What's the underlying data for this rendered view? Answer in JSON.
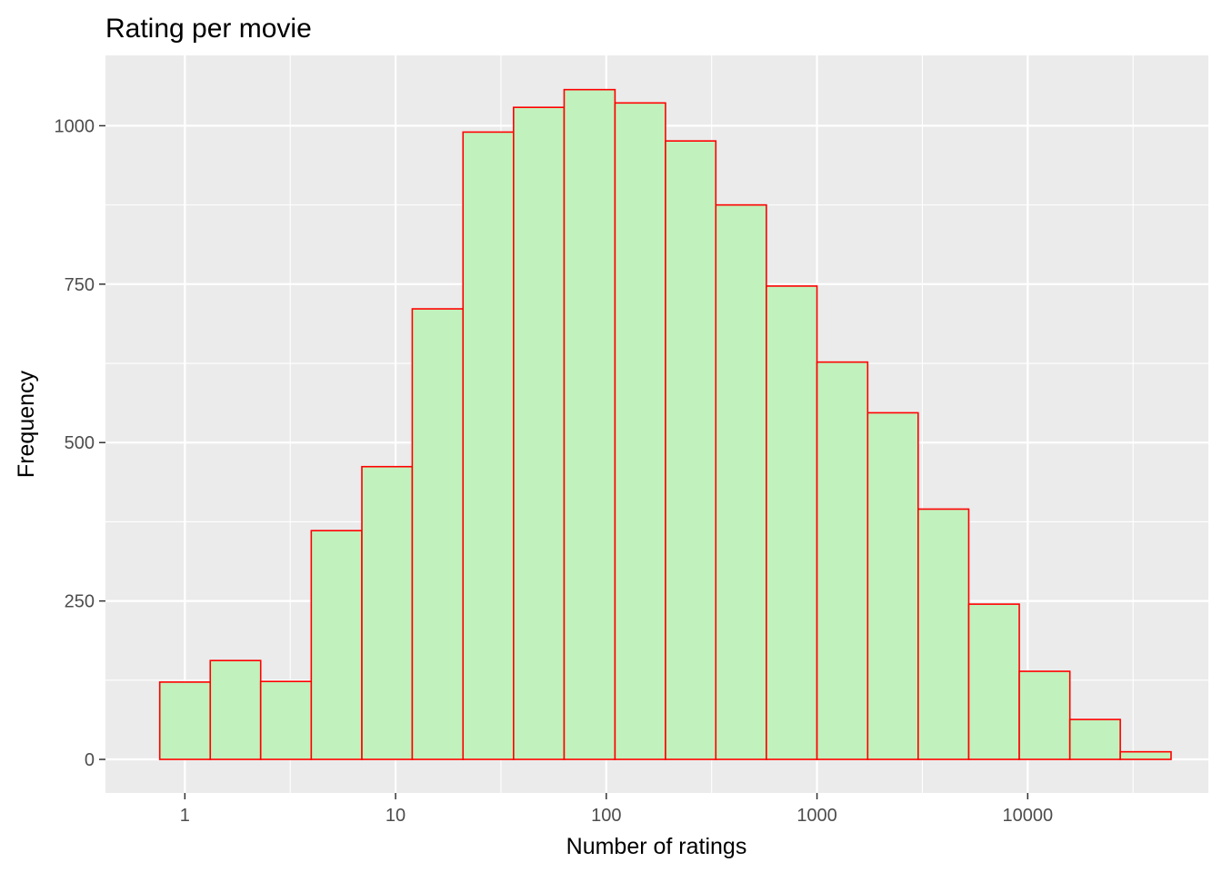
{
  "chart_data": {
    "type": "bar",
    "title": "Rating per movie",
    "xlabel": "Number of ratings",
    "ylabel": "Frequency",
    "x_scale": "log10",
    "x_ticks": [
      {
        "value": 1,
        "label": "1"
      },
      {
        "value": 10,
        "label": "10"
      },
      {
        "value": 100,
        "label": "100"
      },
      {
        "value": 1000,
        "label": "1000"
      },
      {
        "value": 10000,
        "label": "10000"
      }
    ],
    "y_ticks": [
      {
        "value": 0,
        "label": "0"
      },
      {
        "value": 250,
        "label": "250"
      },
      {
        "value": 500,
        "label": "500"
      },
      {
        "value": 750,
        "label": "750"
      },
      {
        "value": 1000,
        "label": "1000"
      }
    ],
    "xlim": [
      0.42,
      72000
    ],
    "ylim": [
      -53,
      1111
    ],
    "bins": [
      {
        "x0": 0.76,
        "x1": 1.32,
        "count": 122
      },
      {
        "x0": 1.32,
        "x1": 2.29,
        "count": 156
      },
      {
        "x0": 2.29,
        "x1": 3.98,
        "count": 123
      },
      {
        "x0": 3.98,
        "x1": 6.92,
        "count": 361
      },
      {
        "x0": 6.92,
        "x1": 12.0,
        "count": 462
      },
      {
        "x0": 12.0,
        "x1": 20.9,
        "count": 711
      },
      {
        "x0": 20.9,
        "x1": 36.3,
        "count": 990
      },
      {
        "x0": 36.3,
        "x1": 63.1,
        "count": 1029
      },
      {
        "x0": 63.1,
        "x1": 110,
        "count": 1057
      },
      {
        "x0": 110,
        "x1": 191,
        "count": 1036
      },
      {
        "x0": 191,
        "x1": 331,
        "count": 976
      },
      {
        "x0": 331,
        "x1": 575,
        "count": 875
      },
      {
        "x0": 575,
        "x1": 1000,
        "count": 747
      },
      {
        "x0": 1000,
        "x1": 1740,
        "count": 627
      },
      {
        "x0": 1740,
        "x1": 3020,
        "count": 547
      },
      {
        "x0": 3020,
        "x1": 5250,
        "count": 395
      },
      {
        "x0": 5250,
        "x1": 9120,
        "count": 245
      },
      {
        "x0": 9120,
        "x1": 15850,
        "count": 139
      },
      {
        "x0": 15850,
        "x1": 27500,
        "count": 63
      },
      {
        "x0": 27500,
        "x1": 47900,
        "count": 12
      }
    ],
    "grid": true,
    "legend": "none",
    "colors": {
      "panel": "#EBEBEB",
      "grid": "#FFFFFF",
      "bar_fill": "#BFF1BA",
      "bar_stroke": "#FF0000",
      "tick_mark": "#333333"
    }
  }
}
